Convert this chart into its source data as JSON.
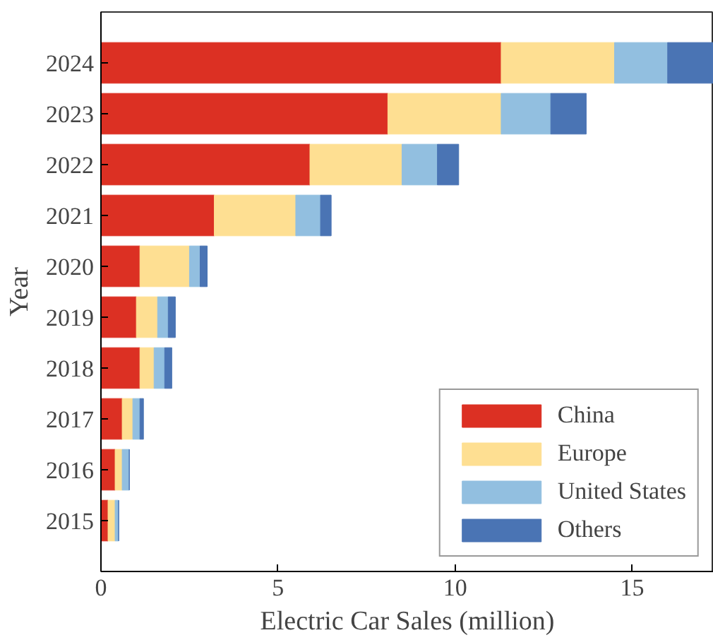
{
  "chart_data": {
    "type": "bar",
    "orientation": "horizontal",
    "stacked": true,
    "xlabel": "Electric Car Sales (million)",
    "ylabel": "Year",
    "categories": [
      "2024",
      "2023",
      "2022",
      "2021",
      "2020",
      "2019",
      "2018",
      "2017",
      "2016",
      "2015"
    ],
    "series": [
      {
        "name": "China",
        "color": "#dc3023",
        "values": [
          11.3,
          8.1,
          5.9,
          3.2,
          1.1,
          1.0,
          1.1,
          0.6,
          0.4,
          0.2
        ]
      },
      {
        "name": "Europe",
        "color": "#fedf92",
        "values": [
          3.2,
          3.2,
          2.6,
          2.3,
          1.4,
          0.6,
          0.4,
          0.3,
          0.2,
          0.2
        ]
      },
      {
        "name": "United States",
        "color": "#92bfe0",
        "values": [
          1.5,
          1.4,
          1.0,
          0.7,
          0.3,
          0.3,
          0.3,
          0.2,
          0.2,
          0.1
        ]
      },
      {
        "name": "Others",
        "color": "#4a74b4",
        "values": [
          1.3,
          1.0,
          0.6,
          0.3,
          0.2,
          0.2,
          0.2,
          0.1,
          0.0,
          0.0
        ]
      }
    ],
    "xlim": [
      0,
      17.3
    ],
    "xticks": [
      0,
      5,
      10,
      15
    ],
    "grid": false,
    "legend": "bottom right"
  }
}
